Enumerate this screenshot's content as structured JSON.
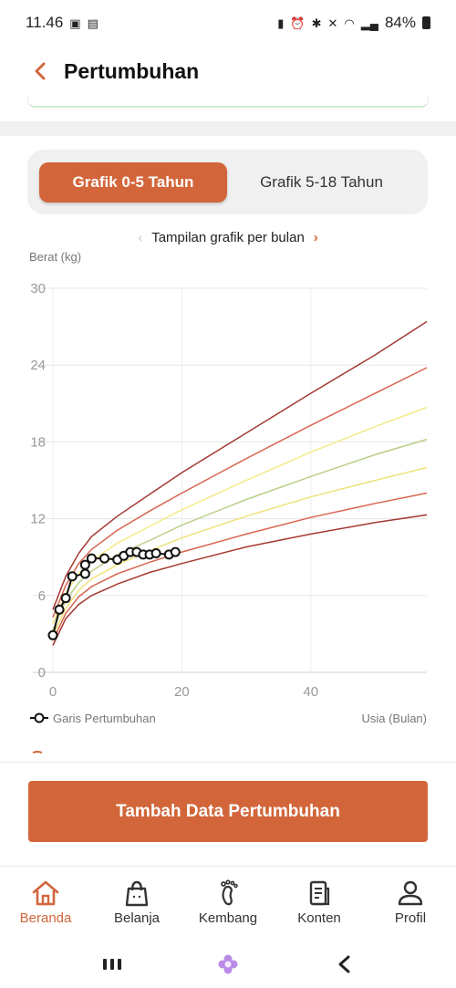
{
  "status_bar": {
    "time": "11.46",
    "battery": "84%"
  },
  "header": {
    "title": "Pertumbuhan"
  },
  "tabs": [
    {
      "label": "Grafik 0-5 Tahun",
      "active": true
    },
    {
      "label": "Grafik 5-18 Tahun",
      "active": false
    }
  ],
  "view_toggle": {
    "label": "Tampilan grafik per bulan"
  },
  "chart_data": {
    "type": "line",
    "ylabel": "Berat (kg)",
    "xlabel": "Usia (Bulan)",
    "xlim": [
      0,
      58
    ],
    "ylim": [
      0,
      30
    ],
    "x_ticks": [
      0,
      20,
      40
    ],
    "y_ticks": [
      0,
      6,
      12,
      18,
      24,
      30
    ],
    "grid": true,
    "legend": {
      "placement": "bottom-left",
      "label": "Garis Pertumbuhan"
    },
    "reference_curves": [
      {
        "color": "#a33a30",
        "points": [
          [
            0,
            2.1
          ],
          [
            2,
            4.2
          ],
          [
            4,
            5.3
          ],
          [
            6,
            6.0
          ],
          [
            10,
            6.9
          ],
          [
            15,
            7.8
          ],
          [
            20,
            8.5
          ],
          [
            30,
            9.8
          ],
          [
            40,
            10.8
          ],
          [
            50,
            11.7
          ],
          [
            58,
            12.3
          ]
        ]
      },
      {
        "color": "#d86450",
        "points": [
          [
            0,
            2.5
          ],
          [
            2,
            4.6
          ],
          [
            4,
            5.9
          ],
          [
            6,
            6.7
          ],
          [
            10,
            7.7
          ],
          [
            15,
            8.6
          ],
          [
            20,
            9.4
          ],
          [
            30,
            10.8
          ],
          [
            40,
            12.1
          ],
          [
            50,
            13.2
          ],
          [
            58,
            14.0
          ]
        ]
      },
      {
        "color": "#f0e27a",
        "points": [
          [
            0,
            2.9
          ],
          [
            2,
            5.0
          ],
          [
            4,
            6.4
          ],
          [
            6,
            7.3
          ],
          [
            10,
            8.4
          ],
          [
            15,
            9.5
          ],
          [
            20,
            10.5
          ],
          [
            30,
            12.2
          ],
          [
            40,
            13.7
          ],
          [
            50,
            15.0
          ],
          [
            58,
            16.0
          ]
        ]
      },
      {
        "color": "#b9cf88",
        "points": [
          [
            0,
            3.3
          ],
          [
            2,
            5.6
          ],
          [
            4,
            7.0
          ],
          [
            6,
            7.9
          ],
          [
            10,
            9.2
          ],
          [
            15,
            10.3
          ],
          [
            20,
            11.5
          ],
          [
            30,
            13.5
          ],
          [
            40,
            15.3
          ],
          [
            50,
            17.0
          ],
          [
            58,
            18.2
          ]
        ]
      },
      {
        "color": "#f4ea88",
        "points": [
          [
            0,
            3.8
          ],
          [
            2,
            6.2
          ],
          [
            4,
            7.7
          ],
          [
            6,
            8.7
          ],
          [
            10,
            10.1
          ],
          [
            15,
            11.4
          ],
          [
            20,
            12.7
          ],
          [
            30,
            15.0
          ],
          [
            40,
            17.2
          ],
          [
            50,
            19.2
          ],
          [
            58,
            20.7
          ]
        ]
      },
      {
        "color": "#d86450",
        "points": [
          [
            0,
            4.3
          ],
          [
            2,
            6.8
          ],
          [
            4,
            8.5
          ],
          [
            6,
            9.6
          ],
          [
            10,
            11.1
          ],
          [
            15,
            12.6
          ],
          [
            20,
            14.0
          ],
          [
            30,
            16.7
          ],
          [
            40,
            19.3
          ],
          [
            50,
            21.8
          ],
          [
            58,
            23.8
          ]
        ]
      },
      {
        "color": "#a33a30",
        "points": [
          [
            0,
            4.9
          ],
          [
            2,
            7.5
          ],
          [
            4,
            9.3
          ],
          [
            6,
            10.6
          ],
          [
            10,
            12.2
          ],
          [
            15,
            13.9
          ],
          [
            20,
            15.6
          ],
          [
            30,
            18.7
          ],
          [
            40,
            21.8
          ],
          [
            50,
            24.8
          ],
          [
            58,
            27.4
          ]
        ]
      }
    ],
    "series": [
      {
        "name": "Garis Pertumbuhan",
        "points": [
          [
            0,
            2.9
          ],
          [
            1,
            4.9
          ],
          [
            2,
            5.8
          ],
          [
            3,
            7.5
          ],
          [
            5,
            7.7
          ],
          [
            5,
            8.4
          ],
          [
            6,
            8.9
          ],
          [
            8,
            8.9
          ],
          [
            10,
            8.8
          ],
          [
            11,
            9.1
          ],
          [
            12,
            9.4
          ],
          [
            13,
            9.4
          ],
          [
            14,
            9.2
          ],
          [
            15,
            9.2
          ],
          [
            16,
            9.3
          ],
          [
            18,
            9.2
          ],
          [
            19,
            9.4
          ]
        ]
      }
    ]
  },
  "primary_action": {
    "label": "Tambah Data Pertumbuhan"
  },
  "bottom_nav": {
    "items": [
      {
        "label": "Beranda",
        "icon": "home-icon",
        "active": true
      },
      {
        "label": "Belanja",
        "icon": "shopping-bag-icon",
        "active": false
      },
      {
        "label": "Kembang",
        "icon": "footprint-icon",
        "active": false
      },
      {
        "label": "Konten",
        "icon": "article-icon",
        "active": false
      },
      {
        "label": "Profil",
        "icon": "person-icon",
        "active": false
      }
    ]
  },
  "colors": {
    "accent": "#d2663a",
    "text": "#222222",
    "muted": "#888888"
  }
}
